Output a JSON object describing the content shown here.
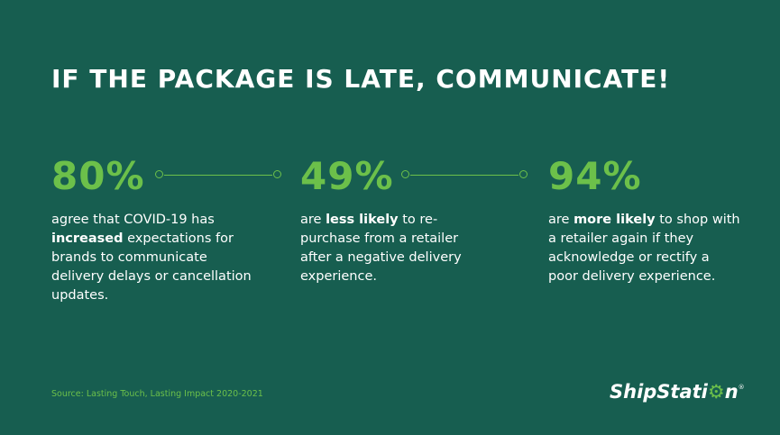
{
  "headline": "IF THE PACKAGE IS LATE, COMMUNICATE!",
  "colors": {
    "background": "#175e50",
    "accent": "#6cc04a",
    "text": "#ffffff"
  },
  "stats": [
    {
      "value": "80%",
      "desc_before": "agree that COVID-19 has ",
      "desc_bold": "increased",
      "desc_after": " expectations for brands to communicate delivery delays or cancellation updates."
    },
    {
      "value": "49%",
      "desc_before": "are ",
      "desc_bold": "less likely",
      "desc_after": " to re-purchase from a retailer after a negative delivery experience."
    },
    {
      "value": "94%",
      "desc_before": "are ",
      "desc_bold": "more likely",
      "desc_after": " to shop with a retailer again if they acknowledge or rectify a poor delivery experience."
    }
  ],
  "source": "Source: Lasting Touch, Lasting Impact 2020-2021",
  "logo": {
    "text_before": "ShipStati",
    "gear_glyph": "⚙",
    "text_after": "n",
    "registered": "®"
  }
}
